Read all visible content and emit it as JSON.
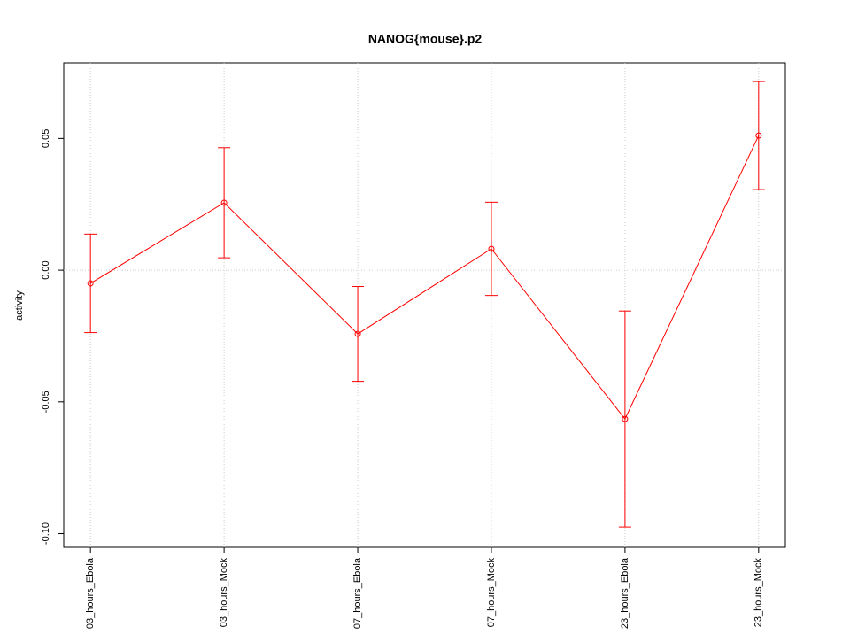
{
  "chart_data": {
    "type": "errorbar-line",
    "title": "NANOG{mouse}.p2",
    "ylabel": "activity",
    "categories": [
      "03_hours_Ebola",
      "03_hours_Mock",
      "07_hours_Ebola",
      "07_hours_Mock",
      "23_hours_Ebola",
      "23_hours_Mock"
    ],
    "values": [
      -0.005,
      0.0256,
      -0.0242,
      0.0081,
      -0.0565,
      0.0511
    ],
    "errors": [
      0.0187,
      0.0209,
      0.018,
      0.0177,
      0.041,
      0.0205
    ],
    "color": "#ff0000",
    "ylim": [
      -0.1052,
      0.0787
    ],
    "yticks": [
      {
        "value": -0.1,
        "label": "-0.10"
      },
      {
        "value": -0.05,
        "label": "-0.05"
      },
      {
        "value": 0,
        "label": "0.00"
      },
      0.05
    ],
    "reference_line": 0,
    "grid": true
  }
}
